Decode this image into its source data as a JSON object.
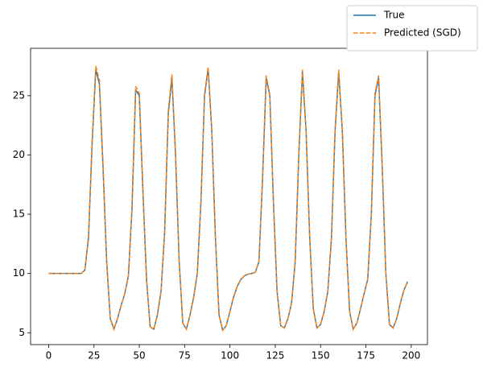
{
  "chart_data": {
    "type": "line",
    "x": [
      0,
      2,
      4,
      6,
      8,
      10,
      12,
      14,
      16,
      18,
      20,
      22,
      24,
      26,
      28,
      30,
      32,
      34,
      36,
      38,
      40,
      42,
      44,
      46,
      48,
      50,
      52,
      54,
      56,
      58,
      60,
      62,
      64,
      66,
      68,
      70,
      72,
      74,
      76,
      78,
      80,
      82,
      84,
      86,
      88,
      90,
      92,
      94,
      96,
      98,
      100,
      102,
      104,
      106,
      108,
      110,
      112,
      114,
      116,
      118,
      120,
      122,
      124,
      126,
      128,
      130,
      132,
      134,
      136,
      138,
      140,
      142,
      144,
      146,
      148,
      150,
      152,
      154,
      156,
      158,
      160,
      162,
      164,
      166,
      168,
      170,
      172,
      174,
      176,
      178,
      180,
      182,
      184,
      186,
      188,
      190,
      192,
      194,
      196,
      198
    ],
    "series": [
      {
        "name": "True",
        "color": "#1f77b4",
        "dash": false,
        "values": [
          10,
          10,
          10,
          10,
          10,
          10,
          10,
          10,
          10,
          10,
          10.3,
          13,
          21,
          27.2,
          26,
          19,
          11,
          6.2,
          5.3,
          6.2,
          7.3,
          8.3,
          9.8,
          15.5,
          25.5,
          25,
          17,
          9.5,
          5.5,
          5.3,
          6.5,
          8.5,
          13.5,
          23.5,
          26.5,
          20,
          11,
          5.8,
          5.3,
          6.5,
          8,
          10,
          16,
          25,
          27.3,
          22,
          13,
          6.5,
          5.2,
          5.6,
          6.8,
          8,
          8.9,
          9.5,
          9.8,
          9.95,
          10,
          10.1,
          11,
          18,
          26.5,
          25,
          16,
          8.5,
          5.6,
          5.4,
          6.2,
          7.5,
          11,
          20,
          27,
          22,
          13,
          7,
          5.4,
          5.7,
          6.8,
          8.5,
          13,
          22,
          27,
          22,
          13,
          6.8,
          5.3,
          5.8,
          7,
          8.3,
          9.5,
          15,
          25,
          26.5,
          19,
          10,
          5.7,
          5.4,
          6.2,
          7.5,
          8.6,
          9.3
        ]
      },
      {
        "name": "Predicted (SGD)",
        "color": "#ff7f0e",
        "dash": true,
        "values": [
          10,
          10,
          10,
          10,
          10,
          10,
          10,
          10,
          10,
          10,
          10.3,
          13.2,
          21.3,
          27.5,
          26.3,
          19.2,
          11.1,
          6.2,
          5.3,
          6.2,
          7.3,
          8.3,
          9.8,
          15.7,
          25.8,
          25.2,
          17.1,
          9.5,
          5.5,
          5.3,
          6.5,
          8.5,
          13.6,
          23.8,
          26.8,
          20.2,
          11,
          5.8,
          5.3,
          6.5,
          8,
          10,
          16.1,
          25.2,
          27.4,
          22.1,
          13,
          6.5,
          5.2,
          5.6,
          6.8,
          8,
          8.9,
          9.5,
          9.8,
          9.95,
          10,
          10.1,
          11,
          18.2,
          26.7,
          25.1,
          16,
          8.5,
          5.6,
          5.4,
          6.2,
          7.5,
          11.1,
          20.2,
          27.2,
          22.1,
          13,
          7,
          5.4,
          5.7,
          6.8,
          8.5,
          13.1,
          22.2,
          27.2,
          22.1,
          13,
          6.8,
          5.3,
          5.8,
          7,
          8.3,
          9.5,
          15.1,
          25.2,
          26.7,
          19.1,
          10,
          5.7,
          5.4,
          6.2,
          7.5,
          8.6,
          9.3
        ]
      }
    ],
    "xlim": [
      -9.95,
      208.95
    ],
    "ylim": [
      4.0,
      29.0
    ],
    "xticks": [
      0,
      25,
      50,
      75,
      100,
      125,
      150,
      175,
      200
    ],
    "yticks": [
      5,
      10,
      15,
      20,
      25
    ],
    "grid": false,
    "legend": "upper right"
  }
}
